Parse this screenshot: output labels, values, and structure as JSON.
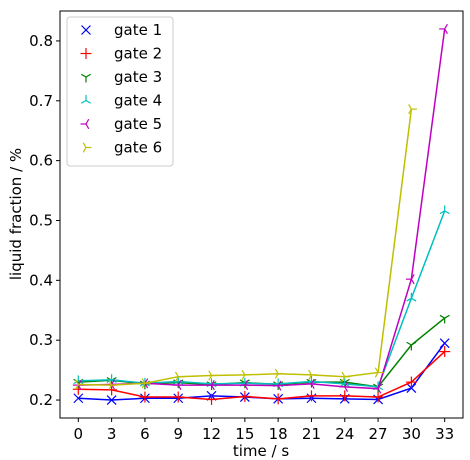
{
  "chart_data": {
    "type": "line",
    "xlabel": "time / s",
    "ylabel": "liquid fraction / %",
    "x": [
      0,
      3,
      6,
      9,
      12,
      15,
      18,
      21,
      24,
      27,
      30,
      33
    ],
    "xticks": [
      "0",
      "3",
      "6",
      "9",
      "12",
      "15",
      "18",
      "21",
      "24",
      "27",
      "30",
      "33"
    ],
    "xlim": [
      -1.65,
      34.65
    ],
    "ylim": [
      0.17,
      0.85
    ],
    "yticks": [
      "0.2",
      "0.3",
      "0.4",
      "0.5",
      "0.6",
      "0.7",
      "0.8"
    ],
    "ytick_values": [
      0.2,
      0.3,
      0.4,
      0.5,
      0.6,
      0.7,
      0.8
    ],
    "grid": false,
    "legend_position": "top-left",
    "series": [
      {
        "name": "gate 1",
        "color": "#0000ff",
        "marker": "x",
        "values": [
          0.203,
          0.2,
          0.203,
          0.203,
          0.207,
          0.205,
          0.202,
          0.203,
          0.202,
          0.201,
          0.22,
          0.295
        ]
      },
      {
        "name": "gate 2",
        "color": "#ff0000",
        "marker": "+",
        "values": [
          0.218,
          0.217,
          0.205,
          0.205,
          0.201,
          0.206,
          0.202,
          0.207,
          0.207,
          0.205,
          0.23,
          0.281
        ]
      },
      {
        "name": "gate 3",
        "color": "#008000",
        "marker": "tri_down",
        "values": [
          0.23,
          0.233,
          0.227,
          0.229,
          0.226,
          0.229,
          0.226,
          0.23,
          0.23,
          0.222,
          0.292,
          0.337
        ]
      },
      {
        "name": "gate 4",
        "color": "#00bfbf",
        "marker": "tri_up",
        "values": [
          0.232,
          0.234,
          0.228,
          0.231,
          0.227,
          0.228,
          0.227,
          0.231,
          0.227,
          0.222,
          0.37,
          0.516
        ]
      },
      {
        "name": "gate 5",
        "color": "#bf00bf",
        "marker": "tri_left",
        "values": [
          0.225,
          0.226,
          0.228,
          0.225,
          0.225,
          0.225,
          0.224,
          0.227,
          0.222,
          0.219,
          0.402,
          0.82
        ]
      },
      {
        "name": "gate 6",
        "color": "#bfbf00",
        "marker": "tri_right",
        "values": [
          0.226,
          0.225,
          0.228,
          0.239,
          0.241,
          0.242,
          0.244,
          0.242,
          0.239,
          0.246,
          0.686,
          null
        ]
      }
    ]
  }
}
